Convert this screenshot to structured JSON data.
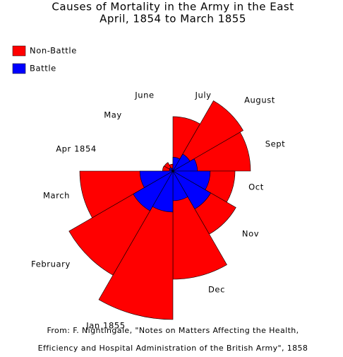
{
  "chart_data": {
    "type": "polar_area",
    "title": "Causes of Mortality in the Army in the East",
    "subtitle": "April, 1854 to March 1855",
    "source": [
      "From: F. Nightingale, \"Notes on Matters Affecting the Health,",
      "Efficiency and Hospital Administration of the British Army\", 1858"
    ],
    "categories": [
      "Apr 1854",
      "May",
      "June",
      "July",
      "August",
      "Sept",
      "Oct",
      "Nov",
      "Dec",
      "Jan 1855",
      "February",
      "March"
    ],
    "series": [
      {
        "name": "Non-Battle",
        "color": "#ff0000",
        "values": [
          5,
          4.6,
          2.3,
          138,
          307,
          281,
          180,
          247,
          544,
          1025,
          672,
          405
        ]
      },
      {
        "name": "Battle",
        "color": "#0000ff",
        "values": [
          0.6,
          0.8,
          0.4,
          9,
          18,
          28,
          65,
          89,
          41,
          78,
          98,
          51
        ]
      }
    ]
  }
}
